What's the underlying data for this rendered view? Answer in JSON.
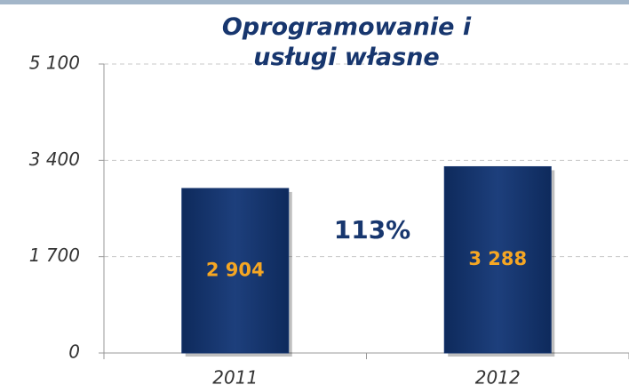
{
  "chart_data": {
    "type": "bar",
    "title": "Oprogramowanie i usługi własne",
    "categories": [
      "2011",
      "2012"
    ],
    "values": [
      2904,
      3288
    ],
    "value_labels": [
      "2 904",
      "3 288"
    ],
    "color": "#17366e",
    "value_label_color": "#f5a623",
    "ylim": [
      0,
      5100
    ],
    "yticks": [
      0,
      {
        "value": 1700,
        "label": "1 700"
      },
      {
        "value": 3400,
        "label": "3 400"
      },
      {
        "value": 5100,
        "label": "5 100"
      }
    ],
    "grid": true,
    "annotation": "113%"
  }
}
